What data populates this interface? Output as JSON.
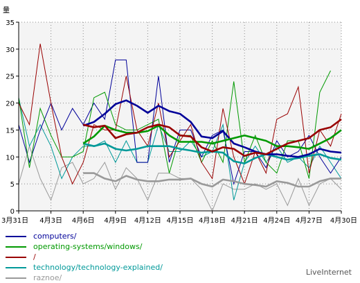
{
  "chart_data": {
    "type": "line",
    "ylabel": "量",
    "ylim": [
      0,
      35
    ],
    "yticks": [
      0,
      5,
      10,
      15,
      20,
      25,
      30,
      35
    ],
    "x": [
      "3月31日",
      "4月1日",
      "4月2日",
      "4月3日",
      "4月4日",
      "4月5日",
      "4月6日",
      "4月7日",
      "4月8日",
      "4月9日",
      "4月10日",
      "4月11日",
      "4月12日",
      "4月13日",
      "4月14日",
      "4月15日",
      "4月16日",
      "4月17日",
      "4月18日",
      "4月19日",
      "4月20日",
      "4月21日",
      "4月22日",
      "4月23日",
      "4月24日",
      "4月25日",
      "4月26日",
      "4月27日",
      "4月28日",
      "4月29日",
      "4月30日"
    ],
    "xtick_labels": [
      "3月31日",
      "4月3日",
      "4月6日",
      "4月9日",
      "4月12日",
      "4月15日",
      "4月18日",
      "4月21日",
      "4月24日",
      "4月27日",
      "4月30日"
    ],
    "xtick_positions": [
      0,
      3,
      6,
      9,
      12,
      15,
      18,
      21,
      24,
      27,
      30
    ],
    "grid": true,
    "series": [
      {
        "name": "computers/",
        "color": "#000099",
        "values": [
          16,
          9,
          15,
          20,
          15,
          19,
          16,
          20,
          17,
          28,
          28,
          9,
          9,
          25,
          9,
          15,
          15,
          10,
          14,
          15,
          5,
          11,
          11,
          8,
          13,
          10,
          11,
          14,
          10,
          7,
          10
        ],
        "smooth": [
          null,
          null,
          null,
          null,
          null,
          null,
          15.8,
          16.5,
          18.0,
          19.8,
          20.5,
          19.5,
          18.2,
          19.5,
          18.5,
          18.0,
          16.5,
          13.8,
          13.5,
          14.8,
          12.5,
          11.8,
          11.0,
          10.5,
          10.5,
          10.2,
          10.0,
          10.5,
          11.5,
          11.0,
          10.8
        ]
      },
      {
        "name": "operating-systems/windows/",
        "color": "#009900",
        "values": [
          21,
          8,
          19,
          14,
          10,
          10,
          11,
          21,
          22,
          16,
          15,
          15,
          16,
          17,
          7,
          14,
          14,
          9,
          13,
          9,
          24,
          9,
          14,
          9,
          7,
          13,
          13,
          6,
          22,
          26,
          null
        ],
        "smooth": [
          null,
          null,
          null,
          null,
          null,
          null,
          12.5,
          13.8,
          15.8,
          15.0,
          14.5,
          14.5,
          14.8,
          15.8,
          14.0,
          12.8,
          12.8,
          12.8,
          12.5,
          13.0,
          13.5,
          14.0,
          13.5,
          13.0,
          12.0,
          12.0,
          11.8,
          11.5,
          12.5,
          13.5,
          15.0
        ]
      },
      {
        "name": "/",
        "color": "#990000",
        "values": [
          20,
          16,
          31,
          20,
          10,
          5,
          9,
          16,
          15,
          15,
          25,
          15,
          12,
          20,
          10,
          13,
          16,
          9,
          6,
          19,
          10,
          5,
          11,
          7,
          17,
          18,
          23,
          7,
          15,
          12,
          18
        ],
        "smooth": [
          null,
          null,
          null,
          null,
          null,
          null,
          16.0,
          15.5,
          15.8,
          13.5,
          14.2,
          14.5,
          15.5,
          16.0,
          15.5,
          14.0,
          13.8,
          11.8,
          11.0,
          11.8,
          11.5,
          10.2,
          10.8,
          10.5,
          11.5,
          12.5,
          13.0,
          13.5,
          15.0,
          15.5,
          17.0
        ]
      },
      {
        "name": "technology/technology-explained/",
        "color": "#009999",
        "values": [
          21,
          12,
          16,
          12,
          6,
          10,
          12,
          12,
          13,
          9,
          13,
          9,
          9,
          16,
          11,
          11,
          13,
          10,
          11,
          16,
          2,
          9,
          12,
          9,
          12,
          9,
          10,
          8,
          12,
          9,
          6
        ],
        "smooth": [
          null,
          null,
          null,
          null,
          null,
          null,
          12.5,
          12.0,
          12.5,
          11.5,
          11.2,
          11.5,
          12.0,
          12.0,
          12.0,
          11.5,
          11.2,
          10.8,
          11.0,
          10.8,
          9.2,
          8.8,
          9.8,
          10.5,
          10.0,
          9.5,
          9.8,
          10.2,
          10.5,
          9.8,
          9.5
        ]
      },
      {
        "name": "raznoe/",
        "color": "#999999",
        "values": [
          5,
          12,
          6,
          2,
          8,
          9,
          5,
          6,
          9,
          4,
          8,
          6,
          2,
          7,
          7,
          6,
          6,
          4,
          0,
          5,
          4,
          4,
          5,
          4,
          5,
          1,
          6,
          1,
          5,
          6,
          4
        ],
        "smooth": [
          null,
          null,
          null,
          null,
          null,
          null,
          7.0,
          7.0,
          6.0,
          5.5,
          6.5,
          5.8,
          5.5,
          5.5,
          5.8,
          5.8,
          6.0,
          5.0,
          4.5,
          5.8,
          5.5,
          5.0,
          4.8,
          4.5,
          5.5,
          5.2,
          4.5,
          4.5,
          5.5,
          6.0,
          6.0
        ]
      }
    ]
  },
  "footer": "LiveInternet"
}
